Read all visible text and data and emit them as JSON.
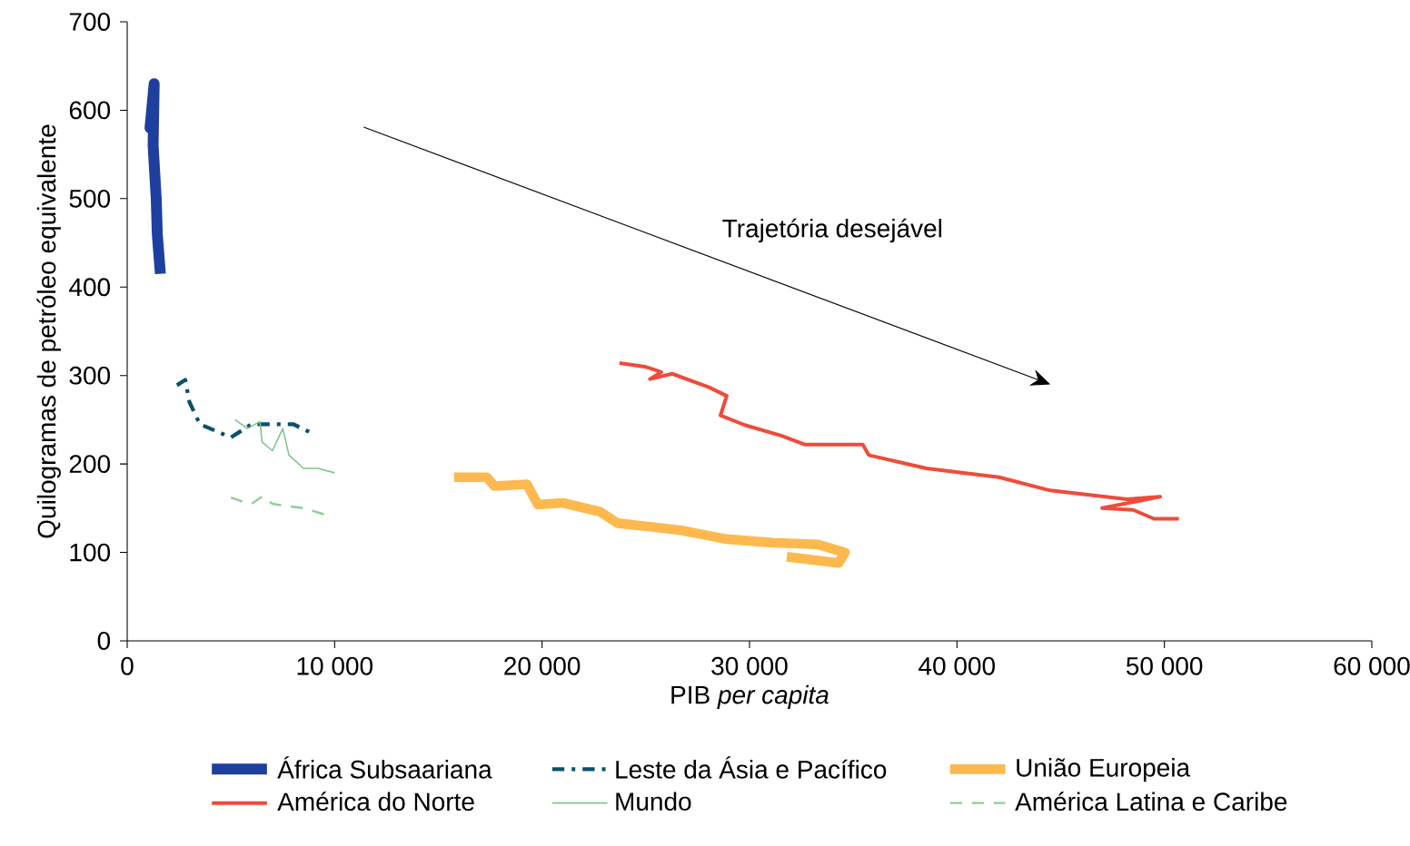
{
  "chart_data": {
    "type": "line",
    "xlabel": "PIB *per capita*",
    "ylabel": "Quilogramas de petróleo equivalente",
    "xlim": [
      0,
      60000
    ],
    "ylim": [
      0,
      700
    ],
    "xticks": [
      0,
      {
        "value": 10000,
        "label": "10 000"
      },
      {
        "value": 20000,
        "label": "20 000"
      },
      {
        "value": 30000,
        "label": "30 000"
      },
      {
        "value": 40000,
        "label": "40 000"
      },
      {
        "value": 50000,
        "label": "50 000"
      },
      {
        "value": 60000,
        "label": "60 000"
      }
    ],
    "yticks": [
      0,
      100,
      200,
      300,
      400,
      500,
      600,
      700
    ],
    "grid": false,
    "legend": "bottom",
    "marker": "none",
    "annotations": [
      "Trajetória desejável"
    ],
    "series": [
      {
        "name": "África Subsaariana",
        "color": "#1f3f9f",
        "line_style": "solid",
        "x": [
          1200,
          1100,
          1300,
          1250,
          1400,
          1450,
          1600
        ],
        "values": [
          600,
          580,
          630,
          560,
          500,
          460,
          415
        ]
      },
      {
        "name": "Leste da Ásia e Pacífico",
        "color": "#0b4f6c",
        "line_style": "dashdot",
        "x": [
          2400,
          2800,
          3000,
          3500,
          4500,
          5000,
          6000,
          7000,
          8000,
          8800
        ],
        "values": [
          289,
          295,
          270,
          245,
          235,
          230,
          245,
          245,
          245,
          236
        ]
      },
      {
        "name": "União Europeia",
        "color": "#fdb94e",
        "line_style": "solid",
        "x": [
          15760,
          17340,
          17690,
          19270,
          19800,
          21000,
          22800,
          23640,
          25200,
          26700,
          28900,
          31100,
          33300,
          34600,
          34300,
          31800
        ],
        "values": [
          185,
          185,
          175,
          177,
          154,
          156,
          146,
          133,
          129,
          125,
          115,
          111,
          109,
          100,
          88,
          95
        ]
      },
      {
        "name": "América do Norte",
        "color": "#ef4b3a",
        "line_style": "solid",
        "x": [
          23730,
          24960,
          25750,
          25200,
          26270,
          28020,
          28900,
          28600,
          29770,
          31520,
          32660,
          35460,
          35750,
          38530,
          42030,
          44500,
          48200,
          49800,
          47000,
          48500,
          49500,
          50700
        ],
        "values": [
          314,
          310,
          304,
          296,
          302,
          287,
          277,
          255,
          244,
          232,
          222,
          222,
          210,
          195,
          185,
          170,
          160,
          163,
          150,
          148,
          138,
          138
        ]
      },
      {
        "name": "Mundo",
        "color": "#7fc68a",
        "line_style": "solid",
        "x": [
          5200,
          5800,
          6400,
          6500,
          7000,
          7500,
          7800,
          8500,
          9200,
          10000
        ],
        "values": [
          250,
          240,
          248,
          225,
          215,
          240,
          210,
          195,
          195,
          190
        ]
      },
      {
        "name": "América Latina e Caribe",
        "color": "#8ccf96",
        "line_style": "dashed",
        "x": [
          5000,
          5500,
          6000,
          6500,
          7000,
          7500,
          8500,
          9500
        ],
        "values": [
          162,
          158,
          155,
          163,
          155,
          153,
          150,
          143
        ]
      }
    ]
  }
}
